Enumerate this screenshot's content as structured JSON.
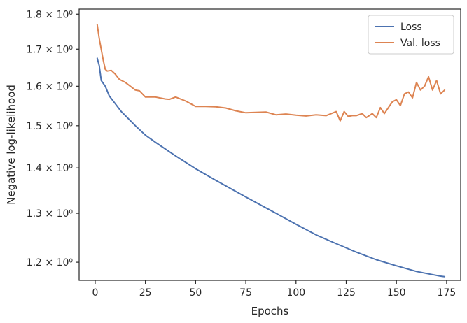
{
  "chart_data": {
    "type": "line",
    "xlabel": "Epochs",
    "ylabel": "Negative log-likelihood",
    "yscale": "log",
    "xlim": [
      -8,
      182
    ],
    "ylim": [
      1.165,
      1.815
    ],
    "xticks": [
      0,
      25,
      50,
      75,
      100,
      125,
      150,
      175
    ],
    "yticks": [
      {
        "value": 1.2,
        "label": "1.2 × 10⁰"
      },
      {
        "value": 1.3,
        "label": "1.3 × 10⁰"
      },
      {
        "value": 1.4,
        "label": "1.4 × 10⁰"
      },
      {
        "value": 1.5,
        "label": "1.5 × 10⁰"
      },
      {
        "value": 1.6,
        "label": "1.6 × 10⁰"
      },
      {
        "value": 1.7,
        "label": "1.7 × 10⁰"
      },
      {
        "value": 1.8,
        "label": "1.8 × 10⁰"
      }
    ],
    "grid": false,
    "legend_position": "top-right",
    "series": [
      {
        "name": "Loss",
        "color": "#4c72b0",
        "x": [
          1,
          2,
          3,
          5,
          7,
          10,
          13,
          16,
          20,
          25,
          30,
          40,
          50,
          60,
          75,
          90,
          100,
          110,
          120,
          130,
          140,
          150,
          160,
          168,
          172,
          174
        ],
        "y": [
          1.675,
          1.655,
          1.615,
          1.6,
          1.575,
          1.555,
          1.535,
          1.52,
          1.5,
          1.477,
          1.46,
          1.428,
          1.398,
          1.372,
          1.335,
          1.3,
          1.277,
          1.255,
          1.237,
          1.22,
          1.205,
          1.193,
          1.182,
          1.176,
          1.173,
          1.172
        ]
      },
      {
        "name": "Val. loss",
        "color": "#dd8452",
        "x": [
          1,
          2,
          4,
          5,
          6,
          8,
          10,
          12,
          15,
          18,
          20,
          22,
          25,
          30,
          35,
          37,
          40,
          45,
          50,
          55,
          60,
          65,
          70,
          75,
          80,
          85,
          90,
          95,
          100,
          105,
          110,
          115,
          120,
          122,
          124,
          126,
          128,
          130,
          133,
          135,
          138,
          140,
          142,
          144,
          146,
          148,
          150,
          152,
          154,
          156,
          158,
          160,
          162,
          164,
          166,
          168,
          170,
          172,
          174
        ],
        "y": [
          1.77,
          1.73,
          1.67,
          1.645,
          1.64,
          1.642,
          1.632,
          1.618,
          1.61,
          1.598,
          1.59,
          1.588,
          1.572,
          1.572,
          1.567,
          1.566,
          1.572,
          1.562,
          1.548,
          1.548,
          1.547,
          1.544,
          1.537,
          1.532,
          1.533,
          1.534,
          1.527,
          1.529,
          1.526,
          1.524,
          1.527,
          1.525,
          1.535,
          1.512,
          1.535,
          1.523,
          1.525,
          1.525,
          1.53,
          1.52,
          1.53,
          1.52,
          1.545,
          1.53,
          1.545,
          1.56,
          1.565,
          1.55,
          1.58,
          1.585,
          1.57,
          1.61,
          1.59,
          1.6,
          1.625,
          1.59,
          1.615,
          1.58,
          1.59
        ]
      }
    ]
  }
}
